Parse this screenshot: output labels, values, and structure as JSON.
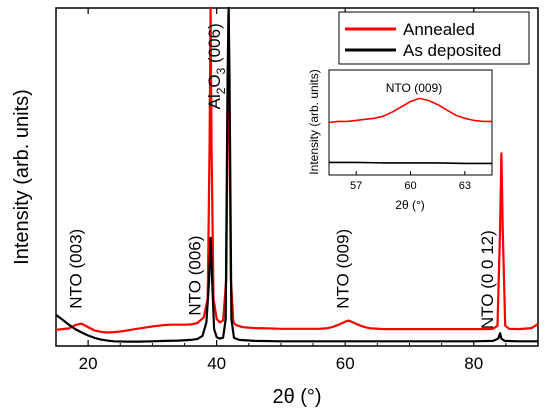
{
  "chart_data": [
    {
      "type": "line",
      "xlabel_prefix": "2",
      "xlabel_symbol": "θ",
      "xlabel_unit": " (°)",
      "ylabel": "Intensity (arb. units)",
      "xlim": [
        15,
        90
      ],
      "ylim": [
        0,
        100
      ],
      "x_ticks": [
        20,
        40,
        60,
        80
      ],
      "legend": {
        "placement": "top-right",
        "entries": [
          "Annealed",
          "As deposited"
        ]
      },
      "annotations": [
        {
          "text": "NTO (003)",
          "x": 19,
          "y": 11
        },
        {
          "text": "NTO (006)",
          "x": 37.5,
          "y": 9
        },
        {
          "text": "NTO (009)",
          "x": 60.5,
          "y": 11
        },
        {
          "text": "NTO (0 0 12)",
          "x": 83,
          "y": 5
        }
      ],
      "al2o3": {
        "base": "Al",
        "sub": "2",
        "mid": "O",
        "sub2": "3",
        "tail": " (006)",
        "x": 40.5,
        "y": 70
      },
      "series": [
        {
          "name": "Annealed",
          "color": "#ff0000",
          "points": [
            [
              15,
              4.8
            ],
            [
              16,
              5.0
            ],
            [
              17,
              5.2
            ],
            [
              18,
              6.2
            ],
            [
              19,
              6.6
            ],
            [
              20,
              5.6
            ],
            [
              21,
              4.6
            ],
            [
              22,
              4.2
            ],
            [
              23,
              4.0
            ],
            [
              24,
              4.1
            ],
            [
              25,
              4.3
            ],
            [
              26,
              4.6
            ],
            [
              27,
              4.9
            ],
            [
              28,
              5.2
            ],
            [
              29,
              5.5
            ],
            [
              30,
              5.8
            ],
            [
              31,
              6.0
            ],
            [
              32,
              6.2
            ],
            [
              33,
              6.3
            ],
            [
              34,
              6.3
            ],
            [
              35,
              6.3
            ],
            [
              36,
              6.4
            ],
            [
              37,
              6.8
            ],
            [
              38,
              8.5
            ],
            [
              38.6,
              14
            ],
            [
              38.9,
              60
            ],
            [
              39.05,
              100
            ],
            [
              39.2,
              60
            ],
            [
              39.5,
              14
            ],
            [
              40,
              8
            ],
            [
              40.5,
              7
            ],
            [
              41,
              7.5
            ],
            [
              41.5,
              20
            ],
            [
              41.85,
              100
            ],
            [
              42.2,
              20
            ],
            [
              42.6,
              7
            ],
            [
              43,
              6.2
            ],
            [
              44,
              5.6
            ],
            [
              46,
              5.3
            ],
            [
              48,
              5.2
            ],
            [
              50,
              5.1
            ],
            [
              52,
              5.1
            ],
            [
              54,
              5.1
            ],
            [
              56,
              5.1
            ],
            [
              57,
              5.2
            ],
            [
              58,
              5.6
            ],
            [
              59,
              6.3
            ],
            [
              60,
              7.2
            ],
            [
              60.5,
              7.5
            ],
            [
              61,
              7.2
            ],
            [
              62,
              6.3
            ],
            [
              63,
              5.6
            ],
            [
              64,
              5.2
            ],
            [
              66,
              5.0
            ],
            [
              68,
              5.0
            ],
            [
              70,
              5.0
            ],
            [
              72,
              5.0
            ],
            [
              74,
              5.0
            ],
            [
              76,
              5.0
            ],
            [
              78,
              5.0
            ],
            [
              80,
              5.0
            ],
            [
              82,
              5.0
            ],
            [
              83,
              5.1
            ],
            [
              83.7,
              6
            ],
            [
              84.1,
              35
            ],
            [
              84.3,
              57
            ],
            [
              84.5,
              35
            ],
            [
              84.9,
              6
            ],
            [
              85.5,
              5.1
            ],
            [
              87,
              5.0
            ],
            [
              89,
              5.3
            ],
            [
              90,
              6.5
            ]
          ]
        },
        {
          "name": "As deposited",
          "color": "#000000",
          "points": [
            [
              15,
              9.2
            ],
            [
              16,
              7.8
            ],
            [
              17,
              6.3
            ],
            [
              18,
              5.0
            ],
            [
              19,
              4.0
            ],
            [
              20,
              3.1
            ],
            [
              21,
              2.4
            ],
            [
              22,
              1.9
            ],
            [
              23,
              1.6
            ],
            [
              24,
              1.4
            ],
            [
              26,
              1.3
            ],
            [
              28,
              1.3
            ],
            [
              30,
              1.4
            ],
            [
              32,
              1.5
            ],
            [
              34,
              1.6
            ],
            [
              36,
              1.8
            ],
            [
              37,
              2.1
            ],
            [
              37.8,
              3
            ],
            [
              38.4,
              7
            ],
            [
              38.8,
              19
            ],
            [
              39.05,
              32
            ],
            [
              39.3,
              19
            ],
            [
              39.6,
              5
            ],
            [
              40,
              2.6
            ],
            [
              40.5,
              2.2
            ],
            [
              41,
              2.5
            ],
            [
              41.4,
              8
            ],
            [
              41.7,
              80
            ],
            [
              41.85,
              100
            ],
            [
              42.0,
              80
            ],
            [
              42.3,
              8
            ],
            [
              42.7,
              2.4
            ],
            [
              43.5,
              1.8
            ],
            [
              46,
              1.5
            ],
            [
              50,
              1.4
            ],
            [
              55,
              1.4
            ],
            [
              60,
              1.4
            ],
            [
              65,
              1.4
            ],
            [
              70,
              1.4
            ],
            [
              75,
              1.4
            ],
            [
              80,
              1.4
            ],
            [
              83,
              1.5
            ],
            [
              83.8,
              2.2
            ],
            [
              84.1,
              3.8
            ],
            [
              84.3,
              2.2
            ],
            [
              84.8,
              1.5
            ],
            [
              87,
              1.4
            ],
            [
              90,
              1.4
            ]
          ]
        }
      ]
    },
    {
      "type": "line",
      "title": "NTO (009)",
      "xlabel_prefix": "2",
      "xlabel_symbol": "θ",
      "xlabel_unit": " (°)",
      "ylabel": "Intensity (arb. units)",
      "xlim": [
        55.5,
        64.5
      ],
      "ylim": [
        0,
        100
      ],
      "x_ticks": [
        57,
        60,
        63
      ],
      "series": [
        {
          "name": "Annealed",
          "color": "#ff0000",
          "points": [
            [
              55.5,
              50
            ],
            [
              56,
              51
            ],
            [
              56.5,
              51
            ],
            [
              57,
              52
            ],
            [
              57.5,
              53
            ],
            [
              58,
              54
            ],
            [
              58.5,
              56
            ],
            [
              59,
              60
            ],
            [
              59.5,
              65
            ],
            [
              60,
              70
            ],
            [
              60.5,
              73
            ],
            [
              61,
              71
            ],
            [
              61.5,
              67
            ],
            [
              62,
              62
            ],
            [
              62.5,
              57
            ],
            [
              63,
              54
            ],
            [
              63.5,
              52
            ],
            [
              64,
              51
            ],
            [
              64.5,
              51
            ]
          ]
        },
        {
          "name": "As deposited",
          "color": "#000000",
          "points": [
            [
              55.5,
              12
            ],
            [
              57,
              12
            ],
            [
              58.5,
              11.5
            ],
            [
              60,
              11.5
            ],
            [
              61.5,
              11.5
            ],
            [
              63,
              11
            ],
            [
              64.5,
              11
            ]
          ]
        }
      ]
    }
  ]
}
